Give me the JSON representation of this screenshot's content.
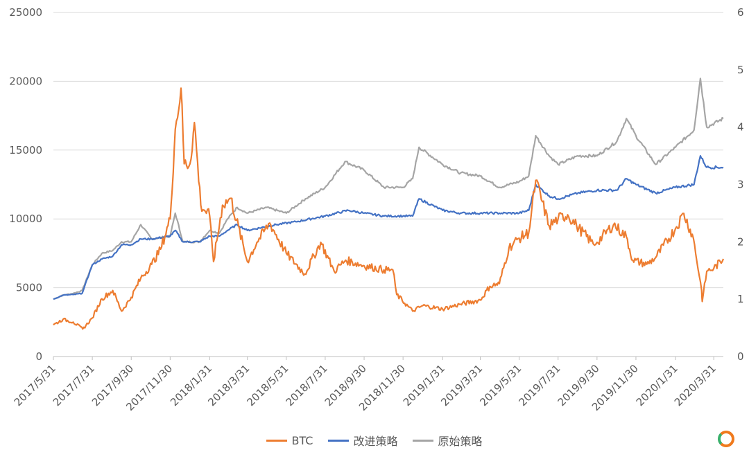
{
  "chart_data": {
    "type": "line",
    "x_labels": [
      "2017/5/31",
      "2017/7/31",
      "2017/9/30",
      "2017/11/30",
      "2018/1/31",
      "2018/3/31",
      "2018/5/31",
      "2018/7/31",
      "2018/9/30",
      "2018/11/30",
      "2019/1/31",
      "2019/3/31",
      "2019/5/31",
      "2019/7/31",
      "2019/9/30",
      "2019/11/30",
      "2020/1/31",
      "2020/3/31"
    ],
    "y_left": {
      "ticks": [
        "0",
        "5000",
        "10000",
        "15000",
        "20000",
        "25000"
      ],
      "lim": [
        0,
        25000
      ]
    },
    "y_right": {
      "ticks": [
        "0",
        "1",
        "2",
        "3",
        "4",
        "5",
        "6"
      ],
      "lim": [
        0,
        6
      ]
    },
    "grid": true,
    "legend_position": "bottom",
    "series": [
      {
        "name": "BTC",
        "axis": "left",
        "color": "#ED7D31",
        "points": [
          [
            "2017/5/31",
            2300
          ],
          [
            "2017/6/15",
            2700
          ],
          [
            "2017/7/1",
            2500
          ],
          [
            "2017/7/16",
            2000
          ],
          [
            "2017/7/31",
            2800
          ],
          [
            "2017/8/15",
            4200
          ],
          [
            "2017/9/1",
            4800
          ],
          [
            "2017/9/15",
            3300
          ],
          [
            "2017/9/30",
            4300
          ],
          [
            "2017/10/15",
            5700
          ],
          [
            "2017/11/1",
            6700
          ],
          [
            "2017/11/15",
            7800
          ],
          [
            "2017/11/30",
            10000
          ],
          [
            "2017/12/8",
            16500
          ],
          [
            "2017/12/17",
            19500
          ],
          [
            "2017/12/22",
            14000
          ],
          [
            "2017/12/31",
            14000
          ],
          [
            "2018/1/7",
            17000
          ],
          [
            "2018/1/17",
            11000
          ],
          [
            "2018/1/31",
            10200
          ],
          [
            "2018/2/6",
            6900
          ],
          [
            "2018/2/20",
            11000
          ],
          [
            "2018/3/5",
            11500
          ],
          [
            "2018/3/31",
            6900
          ],
          [
            "2018/4/15",
            8300
          ],
          [
            "2018/5/5",
            9700
          ],
          [
            "2018/5/31",
            7500
          ],
          [
            "2018/6/29",
            6000
          ],
          [
            "2018/7/24",
            8300
          ],
          [
            "2018/8/14",
            6200
          ],
          [
            "2018/9/1",
            7000
          ],
          [
            "2018/9/30",
            6600
          ],
          [
            "2018/10/31",
            6300
          ],
          [
            "2018/11/14",
            6300
          ],
          [
            "2018/11/20",
            4500
          ],
          [
            "2018/12/15",
            3300
          ],
          [
            "2018/12/31",
            3700
          ],
          [
            "2019/1/31",
            3450
          ],
          [
            "2019/2/28",
            3800
          ],
          [
            "2019/3/31",
            4100
          ],
          [
            "2019/4/15",
            5100
          ],
          [
            "2019/4/30",
            5300
          ],
          [
            "2019/5/15",
            7900
          ],
          [
            "2019/5/31",
            8600
          ],
          [
            "2019/6/15",
            9000
          ],
          [
            "2019/6/26",
            12800
          ],
          [
            "2019/7/17",
            9500
          ],
          [
            "2019/7/31",
            10000
          ],
          [
            "2019/8/15",
            10300
          ],
          [
            "2019/8/29",
            9500
          ],
          [
            "2019/9/24",
            8200
          ],
          [
            "2019/9/30",
            8300
          ],
          [
            "2019/10/26",
            9600
          ],
          [
            "2019/11/15",
            8700
          ],
          [
            "2019/11/25",
            7000
          ],
          [
            "2019/12/17",
            6700
          ],
          [
            "2019/12/31",
            7200
          ],
          [
            "2020/1/31",
            9300
          ],
          [
            "2020/2/13",
            10400
          ],
          [
            "2020/2/28",
            8600
          ],
          [
            "2020/3/12",
            4800
          ],
          [
            "2020/3/13",
            4000
          ],
          [
            "2020/3/20",
            6200
          ],
          [
            "2020/3/31",
            6400
          ],
          [
            "2020/4/15",
            7100
          ]
        ]
      },
      {
        "name": "改进策略",
        "axis": "right",
        "color": "#4472C4",
        "points": [
          [
            "2017/5/31",
            1.0
          ],
          [
            "2017/6/15",
            1.07
          ],
          [
            "2017/7/1",
            1.08
          ],
          [
            "2017/7/15",
            1.1
          ],
          [
            "2017/7/31",
            1.6
          ],
          [
            "2017/8/15",
            1.7
          ],
          [
            "2017/9/1",
            1.75
          ],
          [
            "2017/9/15",
            1.95
          ],
          [
            "2017/9/30",
            1.95
          ],
          [
            "2017/10/15",
            2.05
          ],
          [
            "2017/11/1",
            2.05
          ],
          [
            "2017/11/30",
            2.1
          ],
          [
            "2017/12/8",
            2.2
          ],
          [
            "2017/12/20",
            2.0
          ],
          [
            "2018/1/15",
            2.0
          ],
          [
            "2018/1/31",
            2.1
          ],
          [
            "2018/2/15",
            2.1
          ],
          [
            "2018/2/28",
            2.2
          ],
          [
            "2018/3/15",
            2.3
          ],
          [
            "2018/3/31",
            2.2
          ],
          [
            "2018/5/15",
            2.3
          ],
          [
            "2018/6/15",
            2.35
          ],
          [
            "2018/7/31",
            2.45
          ],
          [
            "2018/9/5",
            2.55
          ],
          [
            "2018/9/30",
            2.5
          ],
          [
            "2018/10/31",
            2.45
          ],
          [
            "2018/11/30",
            2.45
          ],
          [
            "2018/12/15",
            2.45
          ],
          [
            "2018/12/25",
            2.75
          ],
          [
            "2019/1/31",
            2.55
          ],
          [
            "2019/2/28",
            2.5
          ],
          [
            "2019/3/31",
            2.5
          ],
          [
            "2019/4/30",
            2.5
          ],
          [
            "2019/5/31",
            2.5
          ],
          [
            "2019/6/15",
            2.55
          ],
          [
            "2019/6/26",
            3.0
          ],
          [
            "2019/7/17",
            2.8
          ],
          [
            "2019/7/31",
            2.75
          ],
          [
            "2019/8/31",
            2.85
          ],
          [
            "2019/9/30",
            2.9
          ],
          [
            "2019/10/31",
            2.9
          ],
          [
            "2019/11/15",
            3.1
          ],
          [
            "2019/11/30",
            3.0
          ],
          [
            "2019/12/31",
            2.85
          ],
          [
            "2020/1/31",
            2.95
          ],
          [
            "2020/2/29",
            3.0
          ],
          [
            "2020/3/10",
            3.5
          ],
          [
            "2020/3/20",
            3.3
          ],
          [
            "2020/4/15",
            3.3
          ]
        ]
      },
      {
        "name": "原始策略",
        "axis": "right",
        "color": "#A5A5A5",
        "points": [
          [
            "2017/5/31",
            1.0
          ],
          [
            "2017/6/15",
            1.07
          ],
          [
            "2017/7/1",
            1.1
          ],
          [
            "2017/7/15",
            1.15
          ],
          [
            "2017/7/31",
            1.6
          ],
          [
            "2017/8/15",
            1.8
          ],
          [
            "2017/9/1",
            1.85
          ],
          [
            "2017/9/15",
            2.0
          ],
          [
            "2017/9/30",
            2.0
          ],
          [
            "2017/10/15",
            2.3
          ],
          [
            "2017/11/1",
            2.05
          ],
          [
            "2017/11/30",
            2.1
          ],
          [
            "2017/12/8",
            2.5
          ],
          [
            "2017/12/20",
            2.0
          ],
          [
            "2018/1/15",
            2.0
          ],
          [
            "2018/1/31",
            2.2
          ],
          [
            "2018/2/15",
            2.15
          ],
          [
            "2018/2/28",
            2.4
          ],
          [
            "2018/3/15",
            2.6
          ],
          [
            "2018/3/31",
            2.5
          ],
          [
            "2018/4/30",
            2.6
          ],
          [
            "2018/5/31",
            2.5
          ],
          [
            "2018/6/30",
            2.75
          ],
          [
            "2018/7/31",
            2.95
          ],
          [
            "2018/8/31",
            3.4
          ],
          [
            "2018/9/30",
            3.25
          ],
          [
            "2018/10/31",
            2.95
          ],
          [
            "2018/11/30",
            2.95
          ],
          [
            "2018/12/15",
            3.1
          ],
          [
            "2018/12/25",
            3.65
          ],
          [
            "2019/1/31",
            3.35
          ],
          [
            "2019/2/28",
            3.2
          ],
          [
            "2019/3/31",
            3.15
          ],
          [
            "2019/4/30",
            2.95
          ],
          [
            "2019/5/31",
            3.05
          ],
          [
            "2019/6/15",
            3.15
          ],
          [
            "2019/6/26",
            3.85
          ],
          [
            "2019/7/17",
            3.5
          ],
          [
            "2019/7/31",
            3.35
          ],
          [
            "2019/8/31",
            3.5
          ],
          [
            "2019/9/30",
            3.5
          ],
          [
            "2019/10/31",
            3.75
          ],
          [
            "2019/11/15",
            4.15
          ],
          [
            "2019/11/30",
            3.85
          ],
          [
            "2019/12/31",
            3.35
          ],
          [
            "2020/1/31",
            3.65
          ],
          [
            "2020/2/29",
            3.95
          ],
          [
            "2020/3/10",
            4.85
          ],
          [
            "2020/3/20",
            4.0
          ],
          [
            "2020/4/15",
            4.15
          ]
        ]
      }
    ]
  }
}
